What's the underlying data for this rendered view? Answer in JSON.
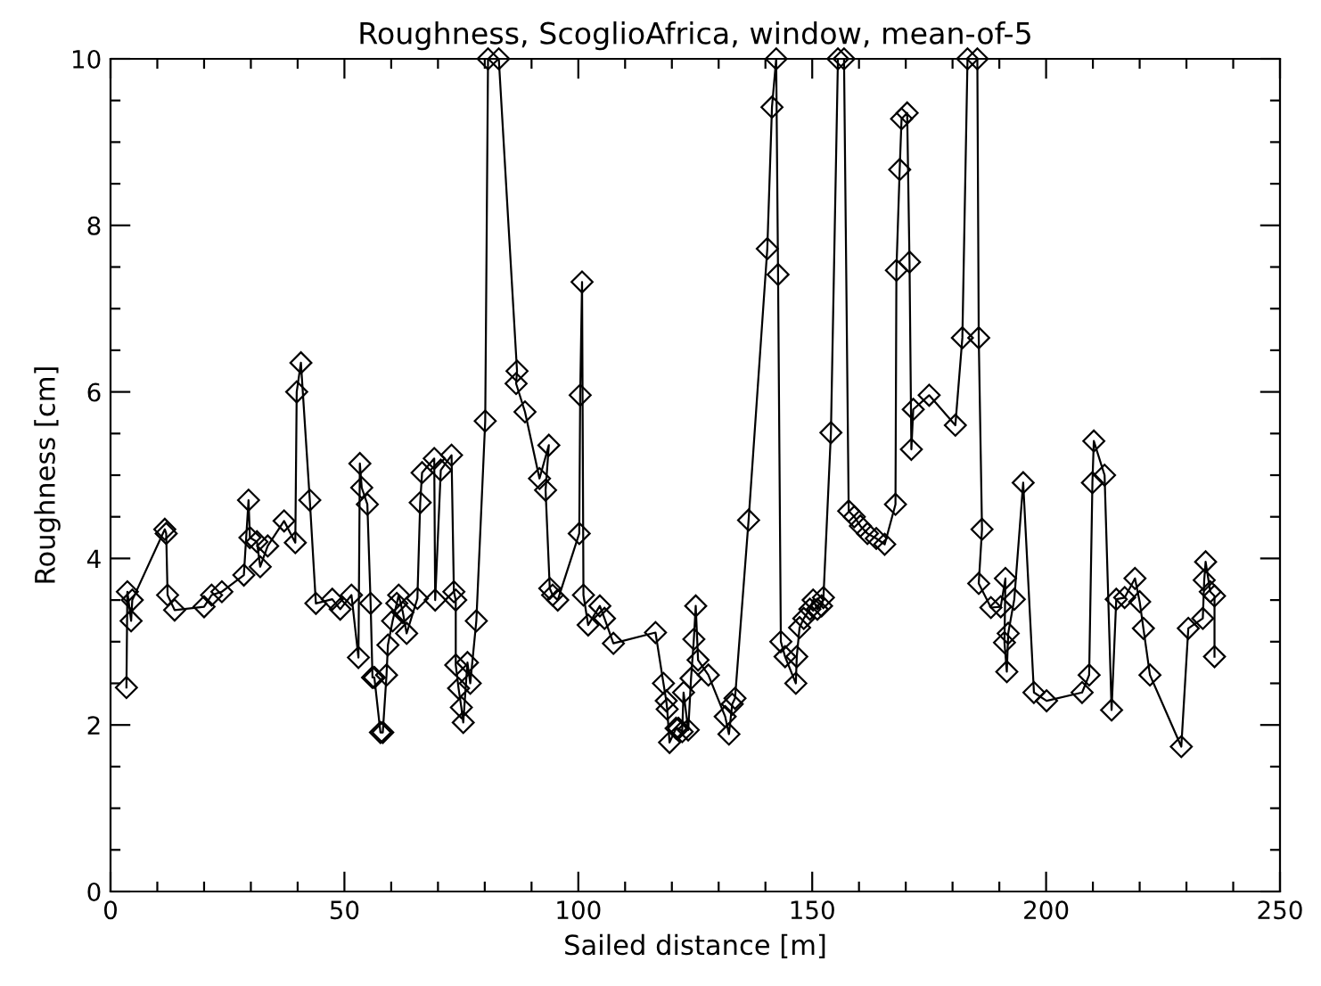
{
  "chart_data": {
    "type": "line",
    "title": "Roughness, ScoglioAfrica, window, mean-of-5",
    "xlabel": "Sailed distance [m]",
    "ylabel": "Roughness [cm]",
    "xlim": [
      0,
      250
    ],
    "ylim": [
      0,
      10
    ],
    "xticks": [
      0,
      {
        "value": 10,
        "label": null
      },
      {
        "value": 20,
        "label": null
      },
      {
        "value": 30,
        "label": null
      },
      {
        "value": 40,
        "label": null
      },
      50,
      {
        "value": 60,
        "label": null
      },
      {
        "value": 70,
        "label": null
      },
      {
        "value": 80,
        "label": null
      },
      {
        "value": 90,
        "label": null
      },
      100,
      {
        "value": 110,
        "label": null
      },
      {
        "value": 120,
        "label": null
      },
      {
        "value": 130,
        "label": null
      },
      {
        "value": 140,
        "label": null
      },
      150,
      {
        "value": 160,
        "label": null
      },
      {
        "value": 170,
        "label": null
      },
      {
        "value": 180,
        "label": null
      },
      {
        "value": 190,
        "label": null
      },
      200,
      {
        "value": 210,
        "label": null
      },
      {
        "value": 220,
        "label": null
      },
      {
        "value": 230,
        "label": null
      },
      {
        "value": 240,
        "label": null
      },
      250
    ],
    "yticks": [
      0,
      {
        "value": 0.5,
        "label": null
      },
      {
        "value": 1,
        "label": null
      },
      {
        "value": 1.5,
        "label": null
      },
      2,
      {
        "value": 2.5,
        "label": null
      },
      {
        "value": 3,
        "label": null
      },
      {
        "value": 3.5,
        "label": null
      },
      4,
      {
        "value": 4.5,
        "label": null
      },
      {
        "value": 5,
        "label": null
      },
      {
        "value": 5.5,
        "label": null
      },
      6,
      {
        "value": 6.5,
        "label": null
      },
      {
        "value": 7,
        "label": null
      },
      {
        "value": 7.5,
        "label": null
      },
      8,
      {
        "value": 8.5,
        "label": null
      },
      {
        "value": 9,
        "label": null
      },
      {
        "value": 9.5,
        "label": null
      },
      10
    ],
    "marker": "diamond",
    "line_style": "solid",
    "grid": false,
    "legend": false,
    "series": [
      {
        "color": "#000000",
        "x": [
          3.4,
          3.6,
          4.4,
          4.65,
          11.6,
          11.9,
          12.2,
          13.7,
          20.0,
          21.6,
          23.8,
          28.5,
          29.5,
          29.8,
          31.3,
          32.0,
          33.6,
          37.1,
          39.5,
          39.8,
          40.7,
          42.6,
          43.9,
          47.4,
          49.1,
          51.5,
          53.0,
          53.3,
          53.7,
          54.9,
          55.6,
          56.0,
          56.4,
          57.7,
          58.2,
          59.0,
          59.3,
          60.3,
          61.2,
          61.6,
          62.5,
          63.3,
          65.6,
          66.2,
          66.6,
          69.2,
          69.4,
          70.6,
          72.9,
          73.4,
          73.8,
          73.8,
          74.4,
          75.0,
          75.4,
          76.3,
          76.9,
          78.2,
          80.1,
          80.7,
          83.0,
          86.9,
          86.7,
          88.6,
          91.7,
          93.7,
          93.0,
          93.9,
          94.5,
          95.6,
          100.2,
          100.4,
          100.8,
          101.1,
          102.1,
          104.6,
          105.6,
          107.5,
          116.5,
          118.2,
          118.8,
          119.0,
          119.5,
          120.9,
          121.4,
          122.2,
          122.5,
          123.5,
          124.1,
          124.7,
          125.1,
          125.6,
          127.8,
          131.4,
          132.2,
          132.9,
          133.5,
          136.4,
          140.4,
          141.4,
          142.3,
          142.7,
          143.3,
          144.2,
          146.5,
          146.7,
          147.3,
          148.2,
          149.5,
          150.2,
          151.1,
          152.0,
          152.4,
          154.0,
          155.5,
          156.8,
          157.8,
          159.0,
          160.3,
          161.8,
          163.7,
          165.5,
          167.8,
          168.0,
          168.7,
          169.1,
          170.3,
          170.8,
          171.2,
          171.6,
          175.0,
          180.6,
          182.1,
          183.2,
          185.3,
          185.6,
          186.3,
          185.6,
          188.2,
          190.3,
          191.3,
          191.1,
          191.6,
          191.9,
          193.2,
          195.1,
          197.4,
          200.1,
          207.7,
          209.2,
          209.9,
          210.2,
          212.5,
          214.0,
          215.0,
          216.8,
          219.0,
          220.0,
          220.8,
          222.2,
          228.9,
          230.4,
          233.5,
          233.8,
          234.1,
          235.1,
          236.0,
          236.0
        ],
        "values": [
          2.45,
          3.6,
          3.25,
          3.5,
          4.35,
          4.3,
          3.56,
          3.38,
          3.42,
          3.56,
          3.6,
          3.8,
          4.7,
          4.25,
          4.2,
          3.9,
          4.15,
          4.45,
          4.19,
          6.0,
          6.35,
          4.7,
          3.46,
          3.51,
          3.39,
          3.56,
          2.81,
          5.14,
          4.85,
          4.65,
          3.46,
          2.57,
          2.57,
          1.91,
          1.91,
          2.6,
          2.96,
          3.25,
          3.46,
          3.56,
          3.35,
          3.1,
          3.52,
          4.67,
          5.03,
          5.2,
          3.5,
          5.06,
          5.24,
          3.6,
          3.5,
          2.72,
          2.44,
          2.21,
          2.03,
          2.75,
          2.5,
          3.25,
          5.65,
          10,
          10,
          6.25,
          6.1,
          5.76,
          4.96,
          5.36,
          4.82,
          3.64,
          3.56,
          3.5,
          4.3,
          5.96,
          7.32,
          3.56,
          3.2,
          3.43,
          3.28,
          2.98,
          3.11,
          2.5,
          2.29,
          2.19,
          1.79,
          1.96,
          1.96,
          1.92,
          2.39,
          1.94,
          2.56,
          3.03,
          3.43,
          2.78,
          2.6,
          2.1,
          1.89,
          2.25,
          2.32,
          4.46,
          7.72,
          9.42,
          10,
          7.41,
          3.0,
          2.82,
          2.5,
          2.82,
          3.17,
          3.28,
          3.39,
          3.5,
          3.39,
          3.43,
          3.53,
          5.51,
          10,
          10,
          4.57,
          4.5,
          4.39,
          4.3,
          4.24,
          4.17,
          4.65,
          7.46,
          8.67,
          9.28,
          9.35,
          7.56,
          5.31,
          5.79,
          5.96,
          5.6,
          6.65,
          10,
          10,
          6.65,
          4.35,
          3.7,
          3.41,
          3.42,
          3.76,
          2.99,
          2.64,
          3.1,
          3.51,
          4.91,
          2.39,
          2.29,
          2.39,
          2.6,
          4.91,
          5.41,
          5.0,
          2.18,
          3.51,
          3.53,
          3.76,
          3.48,
          3.16,
          2.6,
          1.74,
          3.16,
          3.28,
          3.74,
          3.96,
          3.6,
          3.55,
          2.82
        ]
      }
    ]
  }
}
